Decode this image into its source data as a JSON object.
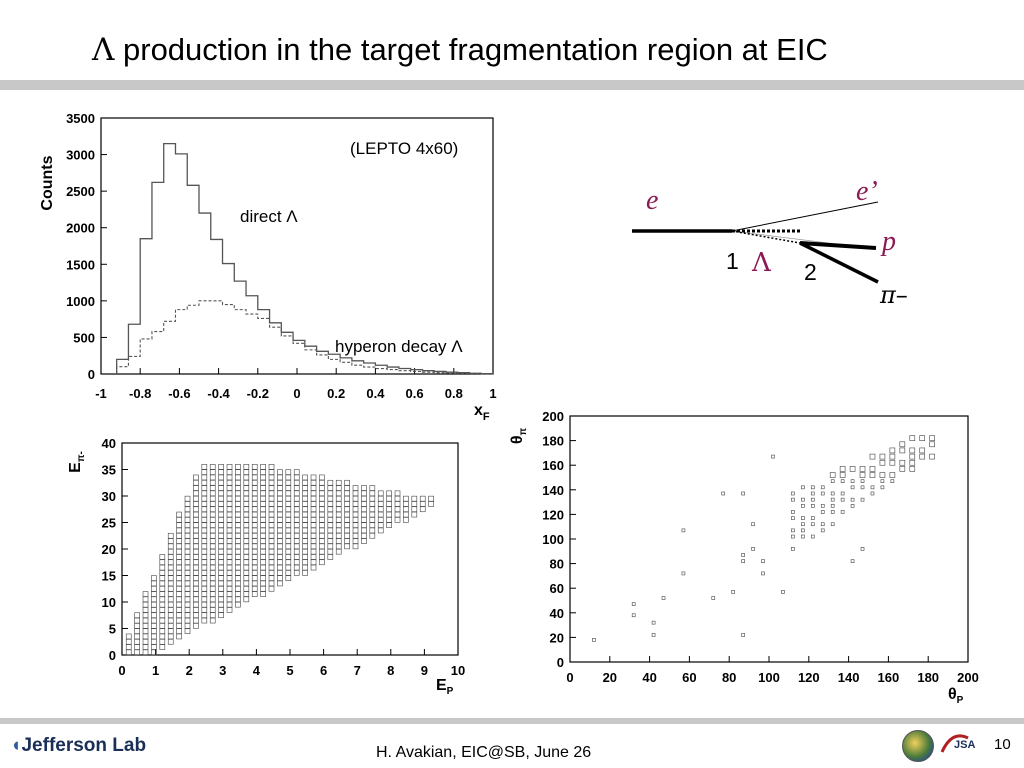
{
  "slide": {
    "title_symbol": "Λ",
    "title_text": " production in the target fragmentation region at EIC",
    "footer": "H. Avakian, EIC@SB,  June 26",
    "page_number": "10",
    "logo_text": "Jefferson Lab",
    "logo2_text": "JSA"
  },
  "diagram": {
    "beam_label": "e",
    "scattered_label": "e’",
    "lambda_label": "Λ",
    "vertex1_label": "1",
    "vertex2_label": "2",
    "proton_label": "p",
    "pion_label": "π–"
  },
  "chart_data": [
    {
      "type": "line",
      "annotation": "(LEPTO 4x60)",
      "ylabel": "Counts",
      "xlabel": "x",
      "xlabel_sub": "F",
      "xlim": [
        -1,
        1
      ],
      "ylim": [
        0,
        3500
      ],
      "x_ticks": [
        "-1",
        "-0.8",
        "-0.6",
        "-0.4",
        "-0.2",
        "0",
        "0.2",
        "0.4",
        "0.6",
        "0.8",
        "1"
      ],
      "y_ticks": [
        "0",
        "500",
        "1000",
        "1500",
        "2000",
        "2500",
        "3000",
        "3500"
      ],
      "bin_edges": [
        -0.92,
        -0.86,
        -0.8,
        -0.74,
        -0.68,
        -0.62,
        -0.56,
        -0.5,
        -0.44,
        -0.38,
        -0.32,
        -0.26,
        -0.2,
        -0.14,
        -0.08,
        -0.02,
        0.04,
        0.1,
        0.16,
        0.22,
        0.28,
        0.34,
        0.4,
        0.46,
        0.52,
        0.58,
        0.64,
        0.7,
        0.76,
        0.82,
        0.88,
        0.94,
        1.0
      ],
      "series": [
        {
          "name": "direct Λ",
          "style": "solid",
          "values": [
            200,
            680,
            1850,
            2620,
            3150,
            3010,
            2580,
            2200,
            1840,
            1510,
            1270,
            1070,
            880,
            700,
            570,
            460,
            380,
            310,
            270,
            220,
            180,
            150,
            120,
            95,
            75,
            60,
            45,
            35,
            25,
            18,
            10,
            5
          ]
        },
        {
          "name": "hyperon decay Λ",
          "style": "dashed",
          "values": [
            100,
            240,
            480,
            580,
            720,
            880,
            940,
            1000,
            1000,
            950,
            880,
            820,
            760,
            640,
            520,
            420,
            330,
            260,
            200,
            160,
            120,
            95,
            75,
            60,
            45,
            35,
            25,
            18,
            12,
            8,
            5,
            2
          ]
        }
      ]
    },
    {
      "type": "scatter",
      "xlabel": "E",
      "xlabel_sub": "P",
      "ylabel": "E",
      "ylabel_sub": "π-",
      "xlim": [
        0,
        10
      ],
      "ylim": [
        0,
        40
      ],
      "x_ticks": [
        "0",
        "1",
        "2",
        "3",
        "4",
        "5",
        "6",
        "7",
        "8",
        "9",
        "10"
      ],
      "y_ticks": [
        "0",
        "5",
        "10",
        "15",
        "20",
        "25",
        "30",
        "35",
        "40"
      ],
      "region": {
        "x_min": 0.2,
        "x_max": 9.4,
        "y_max": 36,
        "upper_x_at_top": [
          2.3,
          4.2
        ]
      }
    },
    {
      "type": "scatter",
      "xlabel": "θ",
      "xlabel_sub": "P",
      "ylabel": "θ",
      "ylabel_sub": "π",
      "xlim": [
        0,
        200
      ],
      "ylim": [
        0,
        200
      ],
      "x_ticks": [
        "0",
        "20",
        "40",
        "60",
        "80",
        "100",
        "120",
        "140",
        "160",
        "180",
        "200"
      ],
      "y_ticks": [
        "0",
        "20",
        "40",
        "60",
        "80",
        "100",
        "120",
        "140",
        "160",
        "180",
        "200"
      ],
      "points": [
        [
          12,
          18
        ],
        [
          32,
          38
        ],
        [
          32,
          47
        ],
        [
          42,
          22
        ],
        [
          42,
          32
        ],
        [
          47,
          52
        ],
        [
          57,
          72
        ],
        [
          57,
          107
        ],
        [
          72,
          52
        ],
        [
          77,
          137
        ],
        [
          82,
          57
        ],
        [
          87,
          22
        ],
        [
          87,
          82
        ],
        [
          87,
          87
        ],
        [
          87,
          137
        ],
        [
          92,
          92
        ],
        [
          92,
          112
        ],
        [
          97,
          72
        ],
        [
          97,
          82
        ],
        [
          102,
          167
        ],
        [
          107,
          57
        ],
        [
          142,
          82
        ],
        [
          147,
          92
        ]
      ]
    }
  ]
}
